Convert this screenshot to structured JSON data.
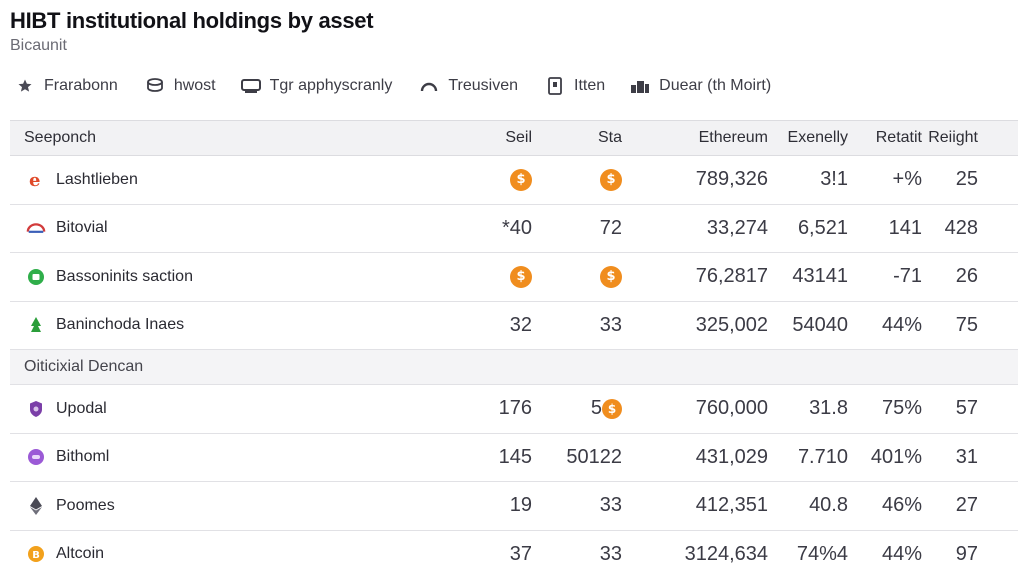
{
  "page": {
    "title": "HIBT institutional holdings by asset",
    "subtitle": "Bicaunit"
  },
  "filters": [
    {
      "label": "Frarabonn",
      "icon": "star-icon"
    },
    {
      "label": "hwost",
      "icon": "coin-stack-icon"
    },
    {
      "label": "Tgr apphyscranly",
      "icon": "monitor-icon"
    },
    {
      "label": "Treusiven",
      "icon": "arc-icon"
    },
    {
      "label": "Itten",
      "icon": "document-icon"
    },
    {
      "label": "Duear (th Moirt)",
      "icon": "building-icon"
    }
  ],
  "table": {
    "headers": [
      "Seeponch",
      "Seil",
      "Sta",
      "Ethereum",
      "Exenelly",
      "Retatit",
      "Reiight"
    ],
    "section_label": "Oiticixial Dencan",
    "rows": [
      {
        "name": "Lashtlieben",
        "icon": "red-e-logo-icon",
        "c1": "",
        "c1_coin": true,
        "c2": "",
        "c2_coin": true,
        "c3": "789,326",
        "c4": "3!1",
        "c5": "+%",
        "c6": "25"
      },
      {
        "name": "Bitovial",
        "icon": "arc-logo-icon",
        "c1": "*40",
        "c1_coin": false,
        "c2": "72",
        "c2_coin": false,
        "c3": "33,274",
        "c4": "6,521",
        "c5": "141",
        "c6": "428"
      },
      {
        "name": "Bassoninits saction",
        "icon": "green-dot-logo-icon",
        "c1": "",
        "c1_coin": true,
        "c2": "",
        "c2_coin": true,
        "c3": "76,2817",
        "c4": "43141",
        "c5": "-71",
        "c6": "26"
      },
      {
        "name": "Baninchoda Inaes",
        "icon": "green-tree-logo-icon",
        "c1": "32",
        "c1_coin": false,
        "c2": "33",
        "c2_coin": false,
        "c3": "325,002",
        "c4": "54040",
        "c5": "44%",
        "c6": "75"
      },
      {
        "name": "Upodal",
        "icon": "purple-shield-logo-icon",
        "c1": "176",
        "c1_coin": false,
        "c2": "5",
        "c2_coin": true,
        "c3": "760,000",
        "c4": "31.8",
        "c5": "75%",
        "c6": "57"
      },
      {
        "name": "Bithoml",
        "icon": "purple-circle-logo-icon",
        "c1": "145",
        "c1_coin": false,
        "c2": "50122",
        "c2_coin": false,
        "c3": "431,029",
        "c4": "7.710",
        "c5": "401%",
        "c6": "31"
      },
      {
        "name": "Poomes",
        "icon": "ethereum-diamond-icon",
        "c1": "19",
        "c1_coin": false,
        "c2": "33",
        "c2_coin": false,
        "c3": "412,351",
        "c4": "40.8",
        "c5": "46%",
        "c6": "27"
      },
      {
        "name": "Altcoin",
        "icon": "orange-coin-logo-icon",
        "c1": "37",
        "c1_coin": false,
        "c2": "33",
        "c2_coin": false,
        "c3": "3124,634",
        "c4": "74%4",
        "c5": "44%",
        "c6": "97"
      }
    ]
  },
  "colors": {
    "coin": "#f08d1e",
    "header_bg": "#f2f2f4",
    "divider": "#e1e1e5"
  }
}
